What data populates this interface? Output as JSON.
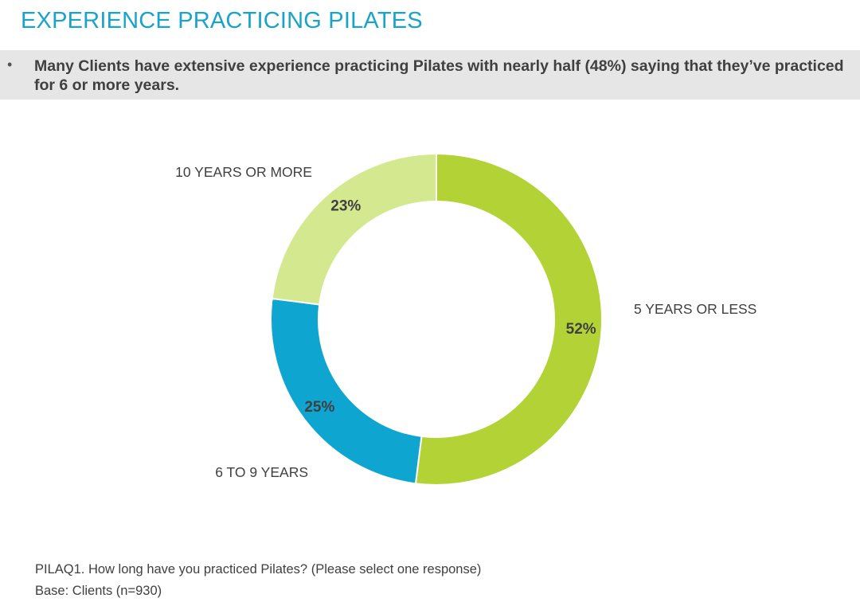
{
  "header": {
    "title": "EXPERIENCE PRACTICING PILATES",
    "bullet_marker": "•",
    "bullet_text": "Many Clients have extensive experience practicing Pilates with nearly half (48%) saying that they’ve practiced for 6 or more years."
  },
  "chart_data": {
    "type": "pie",
    "variant": "donut",
    "title": "",
    "slices": [
      {
        "label": "5 YEARS OR LESS",
        "value": 52,
        "value_label": "52%",
        "color": "#b2d235"
      },
      {
        "label": "6 TO 9 YEARS",
        "value": 25,
        "value_label": "25%",
        "color": "#0ea5d1"
      },
      {
        "label": "10 YEARS OR MORE",
        "value": 23,
        "value_label": "23%",
        "color": "#d4e98f"
      }
    ],
    "start": "top",
    "direction": "clockwise"
  },
  "footer": {
    "question": "PILAQ1. How long have you practiced Pilates? (Please select one response)",
    "base": "Base: Clients (n=930)"
  }
}
